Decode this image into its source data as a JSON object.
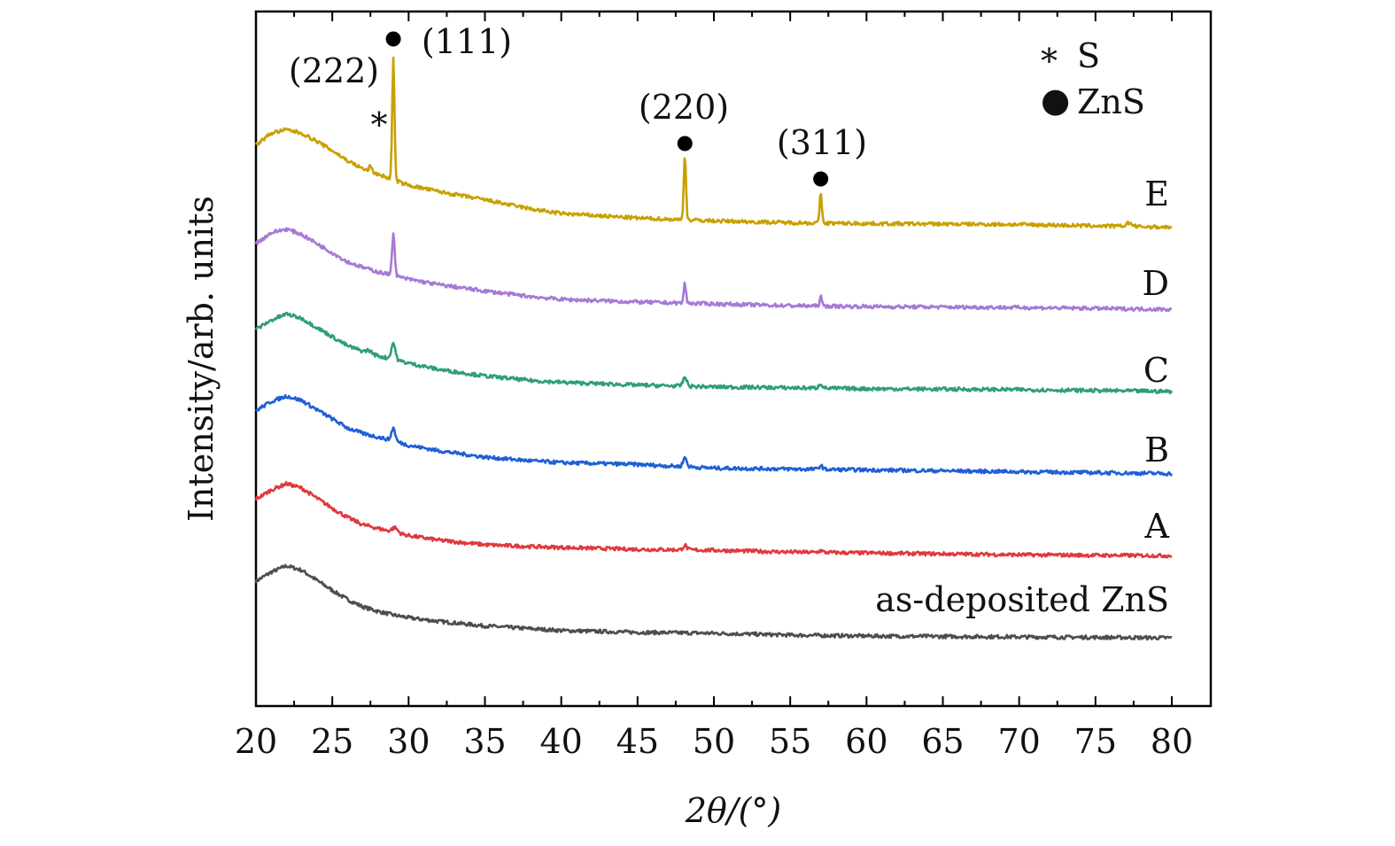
{
  "chart_data": {
    "type": "line",
    "xlabel": "2θ/(°)",
    "ylabel": "Intensity/arb. units",
    "xlim": [
      20,
      80
    ],
    "xticks": [
      20,
      25,
      30,
      35,
      40,
      45,
      50,
      55,
      60,
      65,
      70,
      75,
      80
    ],
    "grid": false,
    "legend_position": "top-right",
    "legend": [
      {
        "marker": "*",
        "label": "S"
      },
      {
        "marker": "●",
        "label": "ZnS"
      }
    ],
    "peak_labels": [
      {
        "text": "(222)",
        "x": 22.5
      },
      {
        "text": "(111)",
        "x": 29.0
      },
      {
        "text": "(220)",
        "x": 48.1
      },
      {
        "text": "(311)",
        "x": 57.0
      }
    ],
    "markers": [
      {
        "symbol": "●",
        "x": 29.0,
        "series": "E"
      },
      {
        "symbol": "●",
        "x": 48.1,
        "series": "E"
      },
      {
        "symbol": "●",
        "x": 57.0,
        "series": "E"
      },
      {
        "symbol": "*",
        "x": 27.6,
        "series": "E"
      }
    ],
    "series": [
      {
        "name": "as-deposited ZnS",
        "color": "#4d4d4d",
        "offset": 0,
        "base": [
          [
            20,
            0.62
          ],
          [
            21,
            0.72
          ],
          [
            22,
            0.79
          ],
          [
            23,
            0.74
          ],
          [
            24,
            0.63
          ],
          [
            25,
            0.52
          ],
          [
            26,
            0.42
          ],
          [
            27,
            0.34
          ],
          [
            28,
            0.29
          ],
          [
            29,
            0.25
          ],
          [
            30,
            0.22
          ],
          [
            32,
            0.18
          ],
          [
            35,
            0.13
          ],
          [
            38,
            0.1
          ],
          [
            40,
            0.08
          ],
          [
            45,
            0.06
          ],
          [
            50,
            0.05
          ],
          [
            55,
            0.03
          ],
          [
            60,
            0.02
          ],
          [
            70,
            0.01
          ],
          [
            80,
            0.0
          ]
        ],
        "peaks": []
      },
      {
        "name": "A",
        "color": "#e0383e",
        "offset": 0.9,
        "base": [
          [
            20,
            0.62
          ],
          [
            21,
            0.72
          ],
          [
            22,
            0.79
          ],
          [
            23,
            0.74
          ],
          [
            24,
            0.63
          ],
          [
            25,
            0.52
          ],
          [
            26,
            0.42
          ],
          [
            27,
            0.34
          ],
          [
            28,
            0.3
          ],
          [
            29,
            0.26
          ],
          [
            30,
            0.22
          ],
          [
            32,
            0.17
          ],
          [
            35,
            0.12
          ],
          [
            38,
            0.1
          ],
          [
            40,
            0.09
          ],
          [
            45,
            0.07
          ],
          [
            50,
            0.06
          ],
          [
            55,
            0.04
          ],
          [
            60,
            0.03
          ],
          [
            70,
            0.01
          ],
          [
            80,
            0.0
          ]
        ],
        "peaks": [
          [
            29.1,
            0.05,
            0.3
          ],
          [
            48.1,
            0.05,
            0.2
          ],
          [
            57.0,
            0.02,
            0.2
          ]
        ]
      },
      {
        "name": "B",
        "color": "#1f5fd6",
        "offset": 1.8,
        "base": [
          [
            20,
            0.69
          ],
          [
            21,
            0.79
          ],
          [
            22,
            0.85
          ],
          [
            23,
            0.8
          ],
          [
            24,
            0.7
          ],
          [
            25,
            0.6
          ],
          [
            26,
            0.5
          ],
          [
            27,
            0.44
          ],
          [
            28,
            0.4
          ],
          [
            29,
            0.36
          ],
          [
            30,
            0.31
          ],
          [
            32,
            0.25
          ],
          [
            35,
            0.18
          ],
          [
            38,
            0.14
          ],
          [
            40,
            0.12
          ],
          [
            45,
            0.1
          ],
          [
            50,
            0.06
          ],
          [
            55,
            0.05
          ],
          [
            60,
            0.04
          ],
          [
            70,
            0.02
          ],
          [
            80,
            0.0
          ]
        ],
        "peaks": [
          [
            29.0,
            0.14,
            0.2
          ],
          [
            48.1,
            0.1,
            0.2
          ],
          [
            57.0,
            0.04,
            0.2
          ]
        ]
      },
      {
        "name": "C",
        "color": "#2e9e78",
        "offset": 2.7,
        "base": [
          [
            20,
            0.68
          ],
          [
            21,
            0.78
          ],
          [
            22,
            0.85
          ],
          [
            23,
            0.8
          ],
          [
            24,
            0.7
          ],
          [
            25,
            0.6
          ],
          [
            26,
            0.5
          ],
          [
            27,
            0.44
          ],
          [
            28,
            0.39
          ],
          [
            29,
            0.35
          ],
          [
            30,
            0.31
          ],
          [
            32,
            0.24
          ],
          [
            35,
            0.17
          ],
          [
            38,
            0.12
          ],
          [
            40,
            0.1
          ],
          [
            45,
            0.07
          ],
          [
            50,
            0.05
          ],
          [
            55,
            0.04
          ],
          [
            60,
            0.03
          ],
          [
            70,
            0.02
          ],
          [
            80,
            0.0
          ]
        ],
        "peaks": [
          [
            27.4,
            0.03,
            0.3
          ],
          [
            29.0,
            0.18,
            0.22
          ],
          [
            48.1,
            0.1,
            0.2
          ],
          [
            57.0,
            0.05,
            0.2
          ]
        ]
      },
      {
        "name": "D",
        "color": "#a679d6",
        "offset": 3.6,
        "base": [
          [
            20,
            0.72
          ],
          [
            21,
            0.84
          ],
          [
            22,
            0.88
          ],
          [
            23,
            0.82
          ],
          [
            24,
            0.72
          ],
          [
            25,
            0.62
          ],
          [
            26,
            0.52
          ],
          [
            27,
            0.46
          ],
          [
            28,
            0.41
          ],
          [
            29,
            0.37
          ],
          [
            30,
            0.33
          ],
          [
            32,
            0.27
          ],
          [
            35,
            0.2
          ],
          [
            38,
            0.14
          ],
          [
            40,
            0.11
          ],
          [
            45,
            0.08
          ],
          [
            50,
            0.06
          ],
          [
            55,
            0.04
          ],
          [
            60,
            0.03
          ],
          [
            70,
            0.02
          ],
          [
            80,
            0.0
          ]
        ],
        "peaks": [
          [
            29.0,
            0.45,
            0.15
          ],
          [
            48.1,
            0.22,
            0.12
          ],
          [
            57.0,
            0.1,
            0.12
          ]
        ]
      },
      {
        "name": "E",
        "color": "#c8a000",
        "offset": 4.5,
        "base": [
          [
            20,
            0.9
          ],
          [
            21,
            1.03
          ],
          [
            22,
            1.07
          ],
          [
            23,
            1.03
          ],
          [
            24,
            0.94
          ],
          [
            25,
            0.84
          ],
          [
            26,
            0.73
          ],
          [
            27,
            0.64
          ],
          [
            28,
            0.58
          ],
          [
            29,
            0.52
          ],
          [
            30,
            0.46
          ],
          [
            32,
            0.39
          ],
          [
            35,
            0.3
          ],
          [
            38,
            0.2
          ],
          [
            40,
            0.15
          ],
          [
            45,
            0.1
          ],
          [
            50,
            0.07
          ],
          [
            55,
            0.05
          ],
          [
            60,
            0.04
          ],
          [
            70,
            0.03
          ],
          [
            80,
            0.0
          ]
        ],
        "peaks": [
          [
            27.5,
            0.06,
            0.15
          ],
          [
            29.0,
            1.35,
            0.12
          ],
          [
            48.1,
            0.72,
            0.12
          ],
          [
            57.0,
            0.32,
            0.12
          ],
          [
            77.2,
            0.04,
            0.3
          ]
        ]
      }
    ]
  }
}
